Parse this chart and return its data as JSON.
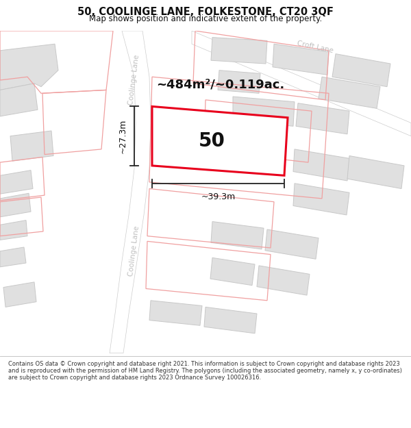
{
  "title_line1": "50, COOLINGE LANE, FOLKESTONE, CT20 3QF",
  "title_line2": "Map shows position and indicative extent of the property.",
  "footer_text": "Contains OS data © Crown copyright and database right 2021. This information is subject to Crown copyright and database rights 2023 and is reproduced with the permission of HM Land Registry. The polygons (including the associated geometry, namely x, y co-ordinates) are subject to Crown copyright and database rights 2023 Ordnance Survey 100026316.",
  "area_label": "~484m²/~0.119ac.",
  "number_label": "50",
  "dim_horizontal": "~39.3m",
  "dim_vertical": "~27.3m",
  "road_label_top": "Coolinge Lane",
  "road_label_bottom": "Coolinge Lane",
  "croft_lane_label": "Croft Lane",
  "map_bg": "#f2f2f2",
  "building_fill": "#e0e0e0",
  "building_stroke": "#c8c8c8",
  "road_fill": "#ffffff",
  "property_stroke": "#e8001c",
  "property_fill": "#ffffff",
  "nearby_stroke": "#f5a0a0",
  "nearby_fill": "none",
  "dim_color": "#222222",
  "text_color": "#111111",
  "road_text_color": "#c0c0c0",
  "title_fontsize": 10.5,
  "subtitle_fontsize": 8.5,
  "area_fontsize": 13,
  "number_fontsize": 20,
  "dim_fontsize": 9,
  "road_fontsize": 7.5
}
